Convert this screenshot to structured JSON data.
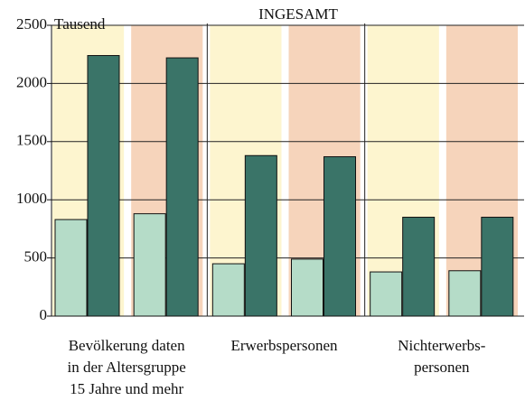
{
  "chart_data": {
    "type": "bar",
    "title": "INGESAMT",
    "y_unit": "Tausend",
    "categories": [
      null,
      null,
      null,
      null,
      null,
      null
    ],
    "groups": [
      {
        "lines": [
          "Bevölkerung daten",
          "in der Altersgruppe",
          "15 Jahre und mehr"
        ]
      },
      {
        "lines": [
          "Erwerbspersonen"
        ]
      },
      {
        "lines": [
          "Nichterwerbs-",
          "personen"
        ]
      }
    ],
    "series": [
      {
        "color": "#b5dcc8",
        "values": [
          830,
          880,
          450,
          490,
          380,
          390
        ]
      },
      {
        "color": "#3a7468",
        "values": [
          2240,
          2220,
          1380,
          1370,
          850,
          850
        ]
      }
    ],
    "band_colors": [
      "#fdf5cf",
      "#f6d4bb"
    ],
    "ylim": [
      0,
      2500
    ],
    "yticks": [
      0,
      500,
      1000,
      1500,
      2000,
      2500
    ],
    "grid": true
  }
}
